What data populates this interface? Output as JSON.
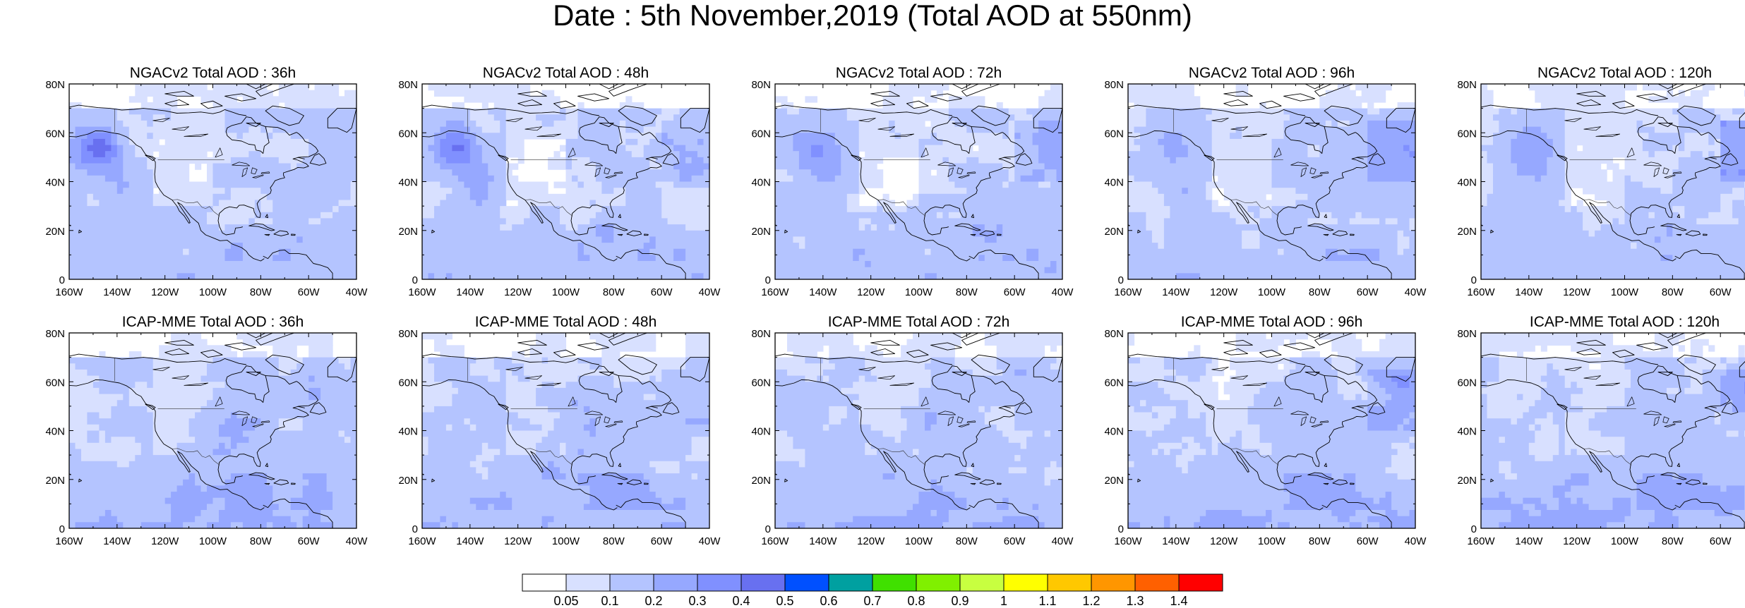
{
  "title": "Date : 5th November,2019 (Total AOD at 550nm)",
  "panels": [
    {
      "title": "NGACv2 Total AOD : 36h",
      "model": "NGACv2",
      "lead": "36h"
    },
    {
      "title": "NGACv2 Total AOD : 48h",
      "model": "NGACv2",
      "lead": "48h"
    },
    {
      "title": "NGACv2 Total AOD : 72h",
      "model": "NGACv2",
      "lead": "72h"
    },
    {
      "title": "NGACv2 Total AOD : 96h",
      "model": "NGACv2",
      "lead": "96h"
    },
    {
      "title": "NGACv2 Total AOD : 120h",
      "model": "NGACv2",
      "lead": "120h"
    },
    {
      "title": "ICAP-MME Total AOD : 36h",
      "model": "ICAP-MME",
      "lead": "36h"
    },
    {
      "title": "ICAP-MME Total AOD : 48h",
      "model": "ICAP-MME",
      "lead": "48h"
    },
    {
      "title": "ICAP-MME Total AOD : 72h",
      "model": "ICAP-MME",
      "lead": "72h"
    },
    {
      "title": "ICAP-MME Total AOD : 96h",
      "model": "ICAP-MME",
      "lead": "96h"
    },
    {
      "title": "ICAP-MME Total AOD : 120h",
      "model": "ICAP-MME",
      "lead": "120h"
    }
  ],
  "lat_ticks": [
    "0",
    "20N",
    "40N",
    "60N",
    "80N"
  ],
  "lon_ticks": [
    "160W",
    "140W",
    "120W",
    "100W",
    "80W",
    "60W",
    "40W"
  ],
  "map_extent": {
    "lon": [
      -160,
      -40
    ],
    "lat": [
      0,
      80
    ]
  },
  "colorbar": {
    "labels": [
      "0.05",
      "0.1",
      "0.2",
      "0.3",
      "0.4",
      "0.5",
      "0.6",
      "0.7",
      "0.8",
      "0.9",
      "1",
      "1.1",
      "1.2",
      "1.3",
      "1.4"
    ],
    "colors": [
      "#ffffff",
      "#d8e0ff",
      "#b4c4ff",
      "#96a8ff",
      "#8090ff",
      "#6870f0",
      "#0050ff",
      "#00a0a0",
      "#40e000",
      "#80f000",
      "#c8ff40",
      "#ffff00",
      "#ffc800",
      "#ff9600",
      "#ff6000",
      "#ff0000"
    ]
  }
}
